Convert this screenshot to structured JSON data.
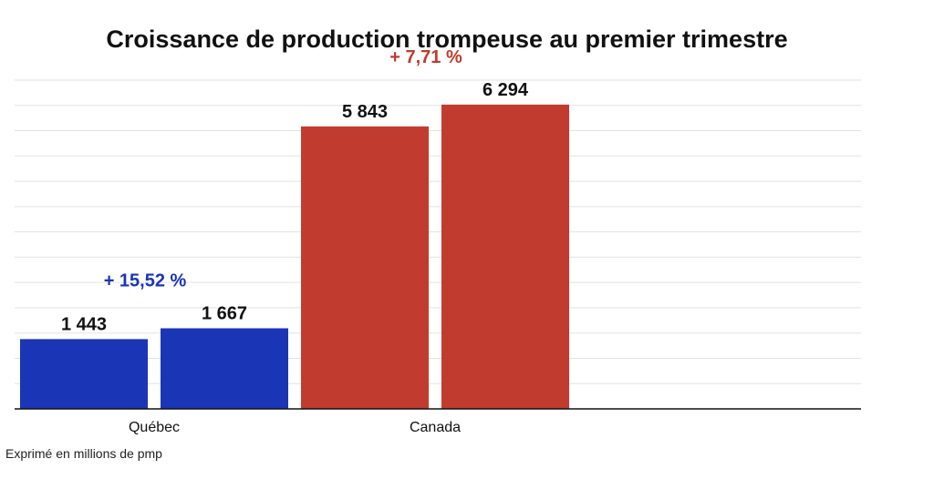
{
  "chart_data": {
    "type": "bar",
    "title": "Croissance de production trompeuse au premier trimestre",
    "note": "Exprimé en millions de pmp",
    "categories": [
      "Québec",
      "Canada"
    ],
    "groups": [
      {
        "category": "Québec",
        "color": "#1a35b5",
        "values": [
          1443,
          1667
        ],
        "value_labels": [
          "1 443",
          "1 667"
        ],
        "change_label": "+ 15,52 %"
      },
      {
        "category": "Canada",
        "color": "#c13b2e",
        "values": [
          5843,
          6294
        ],
        "value_labels": [
          "5 843",
          "6 294"
        ],
        "change_label": "+ 7,71 %"
      }
    ],
    "ylim": [
      0,
      6800
    ],
    "grid": true,
    "legend": "none"
  }
}
